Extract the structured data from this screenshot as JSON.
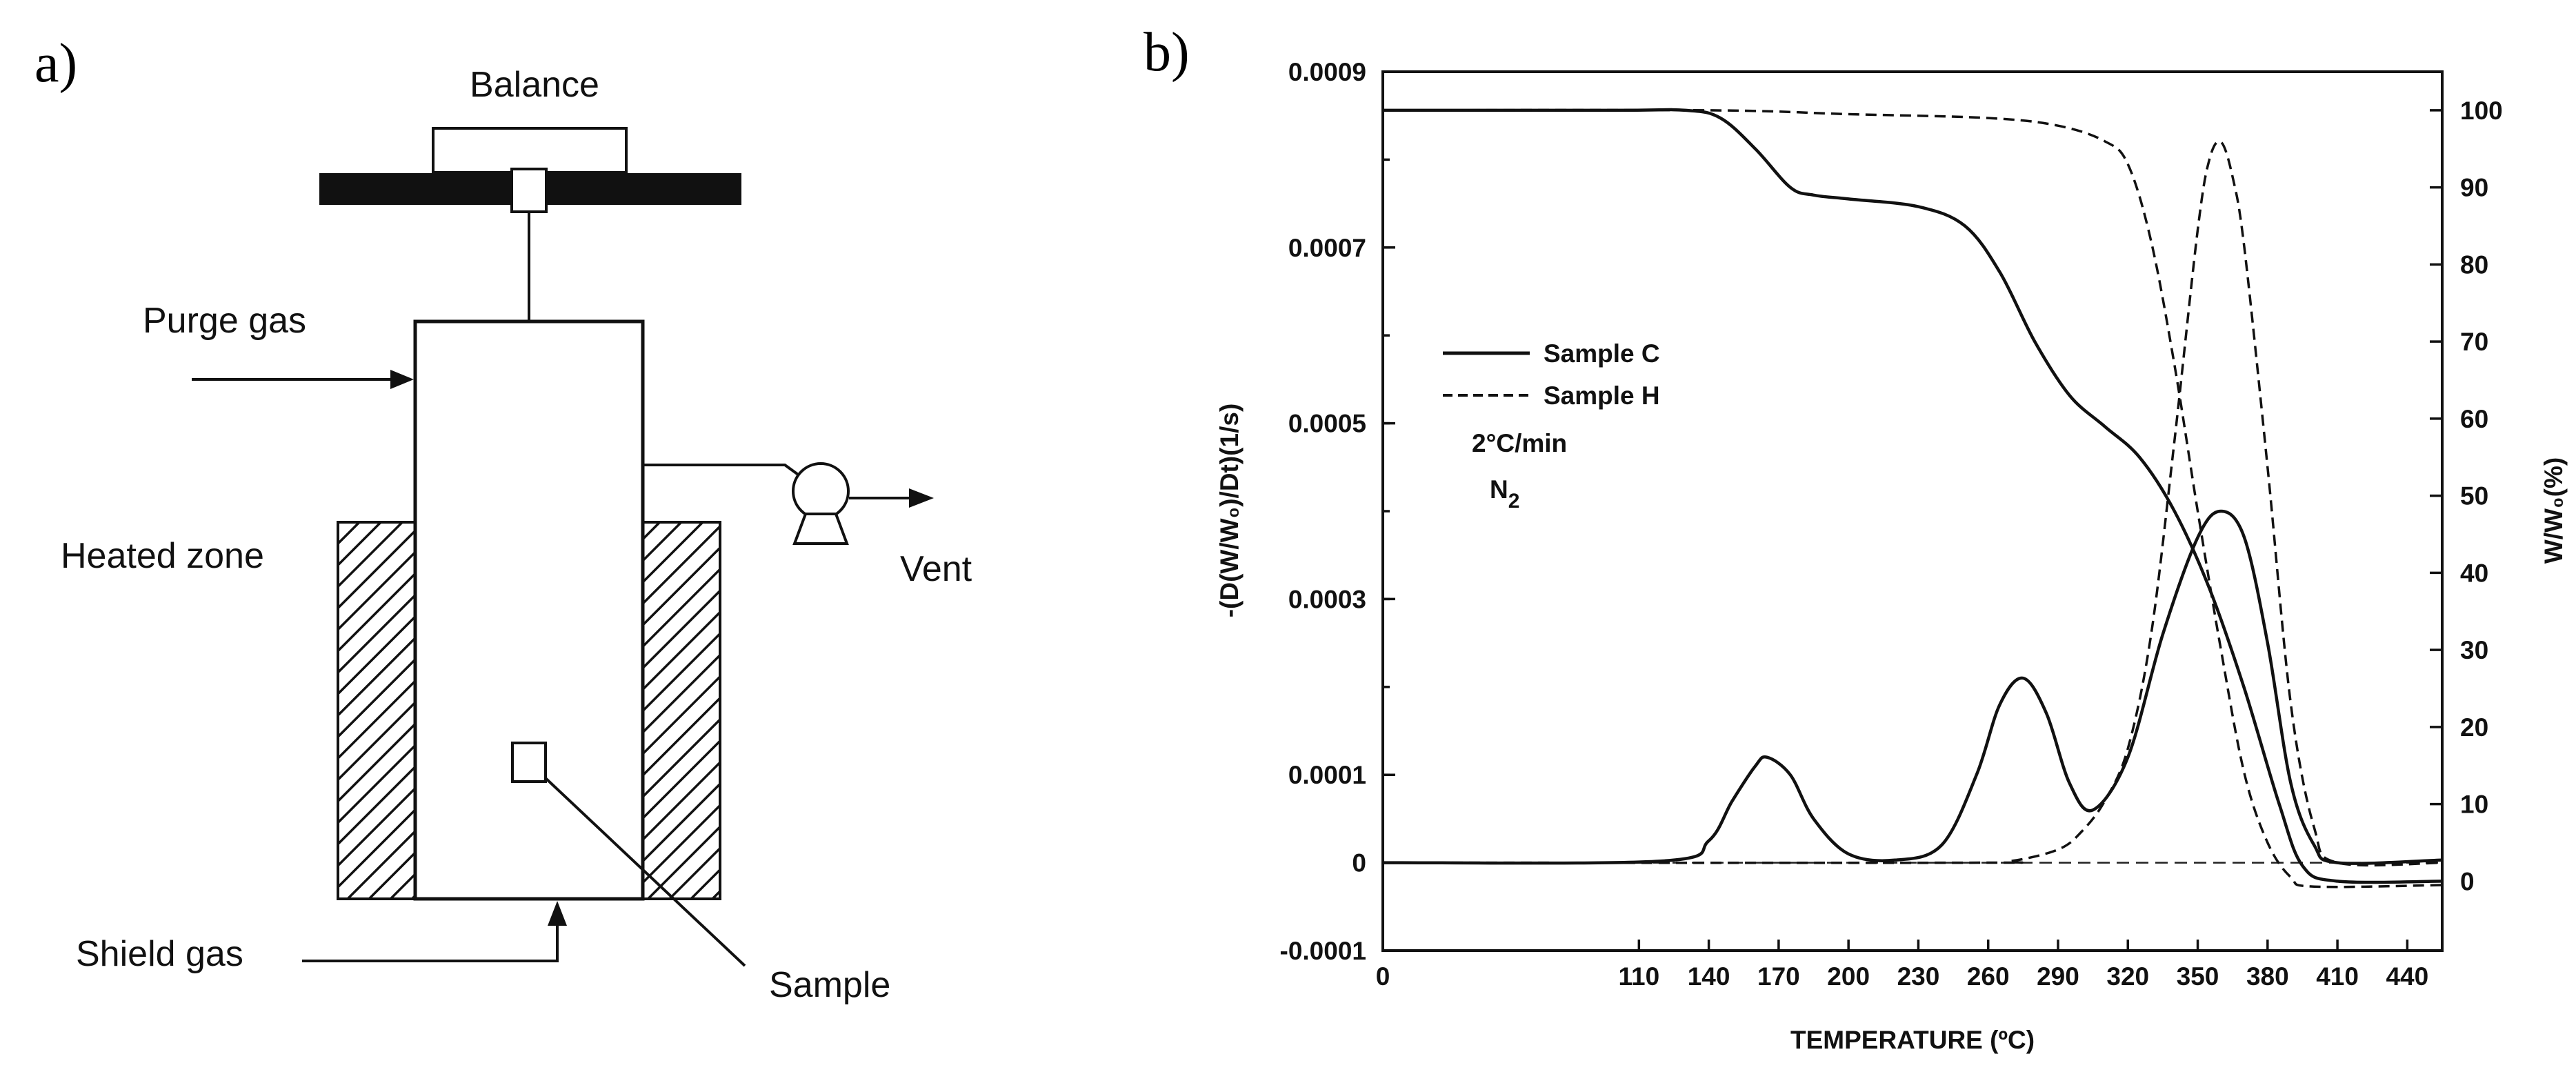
{
  "panel_a": {
    "panel_letter": "a)",
    "labels": {
      "balance": "Balance",
      "purge_gas": "Purge gas",
      "heated_zone": "Heated zone",
      "vent": "Vent",
      "shield_gas": "Shield gas",
      "sample": "Sample"
    }
  },
  "panel_b": {
    "panel_letter": "b)"
  },
  "chart_data": {
    "type": "line",
    "xlabel": "TEMPERATURE (ºC)",
    "ylabel": "-(D(W/W₀)/Dt)(1/s)",
    "y2label": "W/W₀(%)",
    "xlim": [
      0,
      455
    ],
    "ylim": [
      -0.0001,
      0.0009
    ],
    "y2lim": [
      -9,
      105
    ],
    "x_ticks": [
      "0",
      "110",
      "140",
      "170",
      "200",
      "230",
      "260",
      "290",
      "320",
      "350",
      "380",
      "410",
      "440"
    ],
    "y_ticks": [
      "0.0009",
      "0.0007",
      "0.0005",
      "0.0003",
      "0.0001",
      "0",
      "-0.0001"
    ],
    "y2_ticks": [
      "100",
      "90",
      "80",
      "70",
      "60",
      "50",
      "40",
      "30",
      "20",
      "10",
      "0"
    ],
    "legend": {
      "position": "upper-left",
      "entries": [
        "Sample C",
        "Sample H"
      ],
      "conditions": [
        "2°C/min",
        "N"
      ],
      "conditions_subscript": "2"
    },
    "series": [
      {
        "name": "Sample C",
        "style": "solid",
        "axis": "right",
        "quantity": "W/W0 (%)",
        "x": [
          0,
          100,
          130,
          145,
          160,
          175,
          185,
          200,
          230,
          250,
          265,
          280,
          295,
          310,
          325,
          340,
          355,
          370,
          385,
          395,
          410,
          455
        ],
        "y": [
          100,
          100,
          100,
          99,
          95,
          90,
          89,
          88.5,
          87.5,
          85,
          79,
          70,
          63,
          59,
          55,
          48,
          38,
          25,
          10,
          2,
          0,
          0
        ]
      },
      {
        "name": "Sample C",
        "style": "solid",
        "axis": "left",
        "quantity": "-(D(W/W0)/Dt) (1/s)",
        "x": [
          0,
          120,
          140,
          150,
          160,
          165,
          175,
          185,
          200,
          220,
          240,
          255,
          265,
          275,
          285,
          295,
          305,
          320,
          335,
          350,
          360,
          370,
          380,
          390,
          400,
          410,
          455
        ],
        "y": [
          0,
          2e-06,
          2.5e-05,
          7e-05,
          0.00011,
          0.00012,
          0.0001,
          5e-05,
          1e-05,
          3e-06,
          2e-05,
          0.0001,
          0.00018,
          0.00021,
          0.00017,
          9e-05,
          6e-05,
          0.00012,
          0.00026,
          0.00037,
          0.0004,
          0.00037,
          0.00025,
          9e-05,
          2e-05,
          0,
          3e-06
        ]
      },
      {
        "name": "Sample H",
        "style": "dashed",
        "axis": "right",
        "quantity": "W/W0 (%)",
        "x": [
          0,
          140,
          200,
          260,
          290,
          310,
          320,
          330,
          340,
          350,
          360,
          370,
          380,
          390,
          400,
          455
        ],
        "y": [
          100,
          100,
          99.5,
          99,
          98,
          96,
          93,
          83,
          67,
          48,
          30,
          14,
          5,
          0.5,
          -0.7,
          -0.5
        ]
      },
      {
        "name": "Sample H",
        "style": "dashed",
        "axis": "left",
        "quantity": "-(D(W/W0)/Dt) (1/s)",
        "x": [
          0,
          250,
          270,
          290,
          300,
          310,
          320,
          330,
          340,
          350,
          355,
          360,
          365,
          370,
          380,
          390,
          400,
          410,
          455
        ],
        "y": [
          0,
          0,
          2e-06,
          1.5e-05,
          3.5e-05,
          7e-05,
          0.00013,
          0.00026,
          0.00048,
          0.00072,
          0.0008,
          0.00082,
          0.00078,
          0.0007,
          0.00045,
          0.00018,
          4e-05,
          0,
          0
        ]
      }
    ]
  }
}
